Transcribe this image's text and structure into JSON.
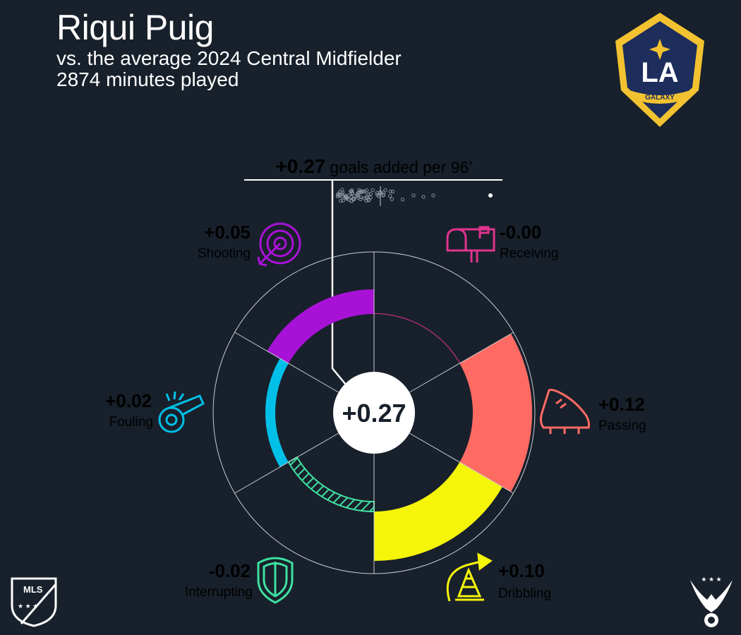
{
  "header": {
    "player_name": "Riqui Puig",
    "subtitle": "vs. the average 2024 Central Midfielder",
    "minutes": "2874 minutes played"
  },
  "team_logo": {
    "text": "LA",
    "subtext": "GALAXY",
    "colors": {
      "navy": "#1d2d5c",
      "gold": "#f2c230"
    }
  },
  "league_logo": {
    "text": "MLS"
  },
  "total": {
    "value_label": "+0.27",
    "caption": "goals added per 96’"
  },
  "distribution": {
    "player_dot_value": 0.27
  },
  "chart_data": {
    "type": "radial-bar",
    "title": "+0.27 goals added per 96’",
    "center_label": "+0.27",
    "total": 0.27,
    "categories": [
      "Receiving",
      "Passing",
      "Dribbling",
      "Interrupting",
      "Fouling",
      "Shooting"
    ],
    "values": [
      -0.0,
      0.12,
      0.1,
      -0.02,
      0.02,
      0.05
    ],
    "labels": [
      "-0.00",
      "+0.12",
      "+0.10",
      "-0.02",
      "+0.02",
      "+0.05"
    ],
    "colors": {
      "Receiving": "#e0338f",
      "Passing": "#ff6b63",
      "Dribbling": "#f5f50a",
      "Interrupting": "#3ee0a0",
      "Fouling": "#00c0e8",
      "Shooting": "#a812d6"
    },
    "negative_style": "hatched",
    "icons": {
      "Receiving": "mailbox-icon",
      "Passing": "cleat-icon",
      "Dribbling": "cone-icon",
      "Interrupting": "shield-icon",
      "Fouling": "whistle-icon",
      "Shooting": "target-icon"
    }
  }
}
